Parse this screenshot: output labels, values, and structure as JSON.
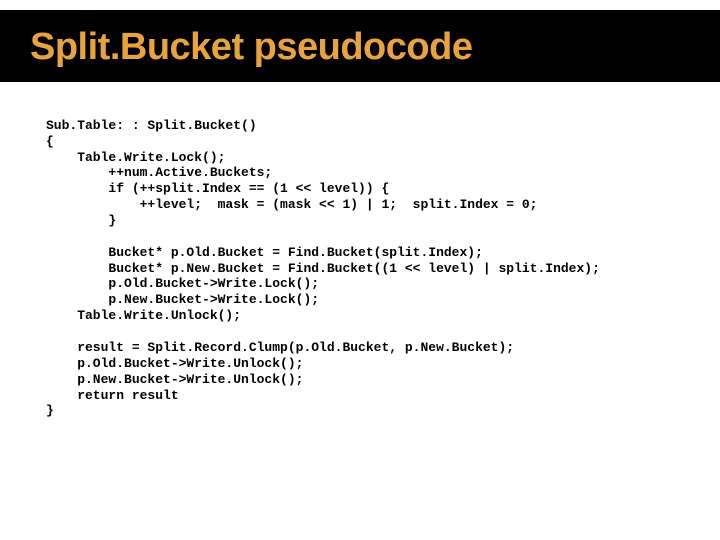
{
  "title": {
    "text": "Split.Bucket pseudocode",
    "color": "#e8a33d",
    "background": "#000000",
    "fontsize": 38
  },
  "code": {
    "fontsize": 13,
    "color": "#000000",
    "lines": [
      "Sub.Table: : Split.Bucket()",
      "{",
      "    Table.Write.Lock();",
      "        ++num.Active.Buckets;",
      "        if (++split.Index == (1 << level)) {",
      "            ++level;  mask = (mask << 1) | 1;  split.Index = 0;",
      "        }",
      "",
      "        Bucket* p.Old.Bucket = Find.Bucket(split.Index);",
      "        Bucket* p.New.Bucket = Find.Bucket((1 << level) | split.Index);",
      "        p.Old.Bucket->Write.Lock();",
      "        p.New.Bucket->Write.Lock();",
      "    Table.Write.Unlock();",
      "",
      "    result = Split.Record.Clump(p.Old.Bucket, p.New.Bucket);",
      "    p.Old.Bucket->Write.Unlock();",
      "    p.New.Bucket->Write.Unlock();",
      "    return result",
      "}"
    ]
  }
}
